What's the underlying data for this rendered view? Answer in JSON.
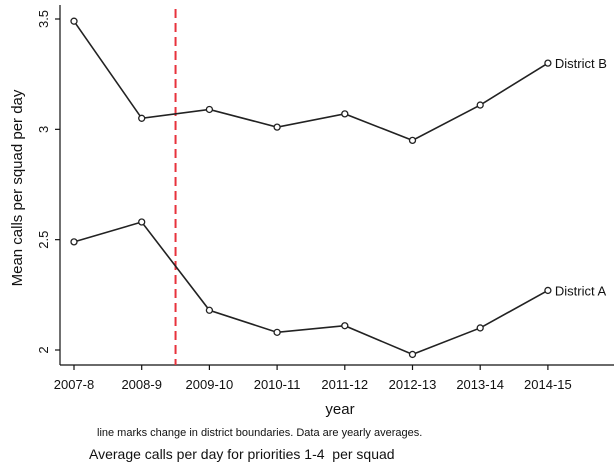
{
  "chart_data": {
    "type": "line",
    "categories": [
      "2007-8",
      "2008-9",
      "2009-10",
      "2010-11",
      "2011-12",
      "2012-13",
      "2013-14",
      "2014-15"
    ],
    "series": [
      {
        "name": "District B",
        "values": [
          3.49,
          3.05,
          3.09,
          3.01,
          3.07,
          2.95,
          3.11,
          3.3
        ],
        "color": "#222222"
      },
      {
        "name": "District A",
        "values": [
          2.49,
          2.58,
          2.18,
          2.08,
          2.11,
          1.98,
          2.1,
          2.27
        ],
        "color": "#222222"
      }
    ],
    "xlabel": "year",
    "ylabel": "Mean calls per squad per day",
    "ylim": [
      1.95,
      3.5
    ],
    "yticks": [
      2,
      2.5,
      3,
      3.5
    ],
    "yticklabels": [
      "2",
      "2.5",
      "3",
      "3.5"
    ],
    "boundary_change_x": 2.5,
    "boundary_line_color": "#e8323c",
    "note": "line marks change in district boundaries. Data are yearly averages.",
    "caption": "Average calls per day for priorities 1-4  per squad",
    "grid": false
  }
}
